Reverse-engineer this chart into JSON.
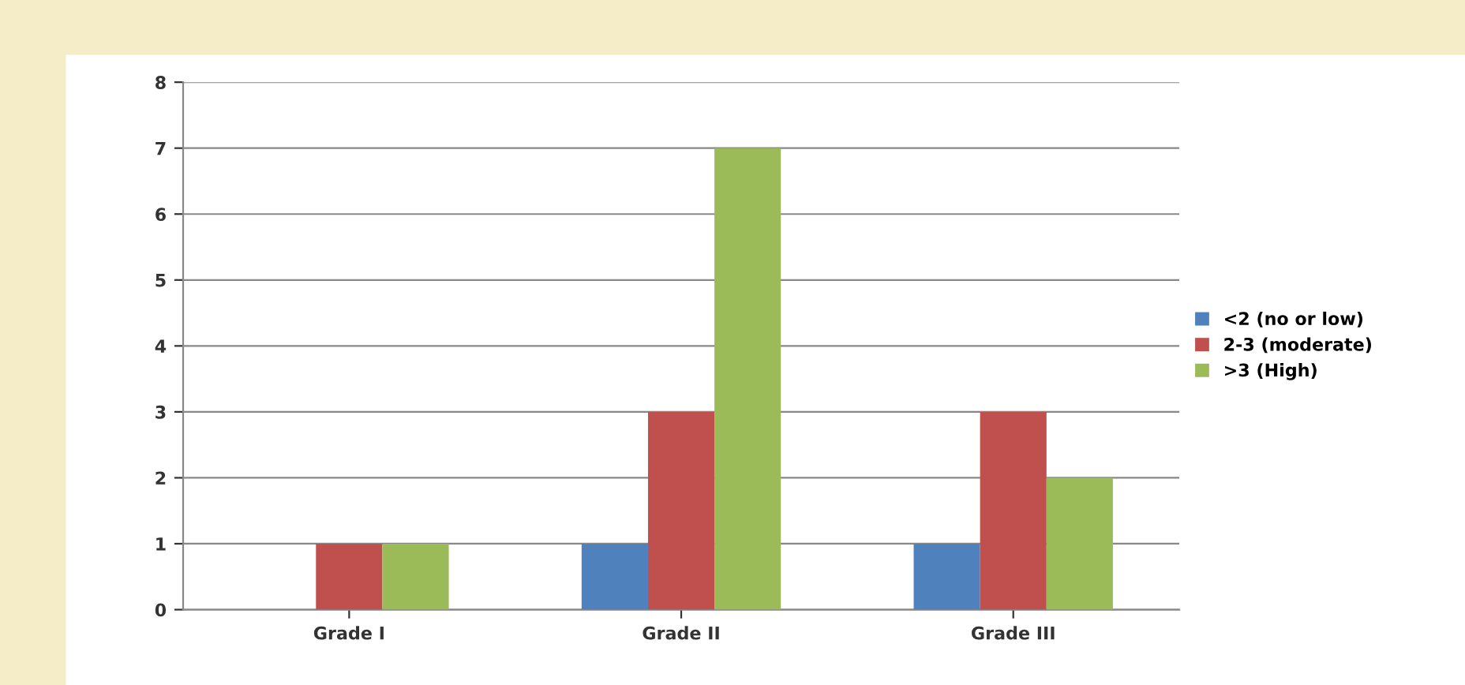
{
  "chart_data": {
    "type": "bar",
    "categories": [
      "Grade I",
      "Grade II",
      "Grade III"
    ],
    "series": [
      {
        "name": "<2 (no or low)",
        "color": "#4f81bd",
        "values": [
          0,
          1,
          1
        ]
      },
      {
        "name": "2-3 (moderate)",
        "color": "#c0504d",
        "values": [
          1,
          3,
          3
        ]
      },
      {
        "name": ">3 (High)",
        "color": "#9bbb59",
        "values": [
          1,
          7,
          2
        ]
      }
    ],
    "ylim": [
      0,
      8
    ],
    "yticks": [
      0,
      1,
      2,
      3,
      4,
      5,
      6,
      7,
      8
    ],
    "grid": "y",
    "legend": "right"
  }
}
